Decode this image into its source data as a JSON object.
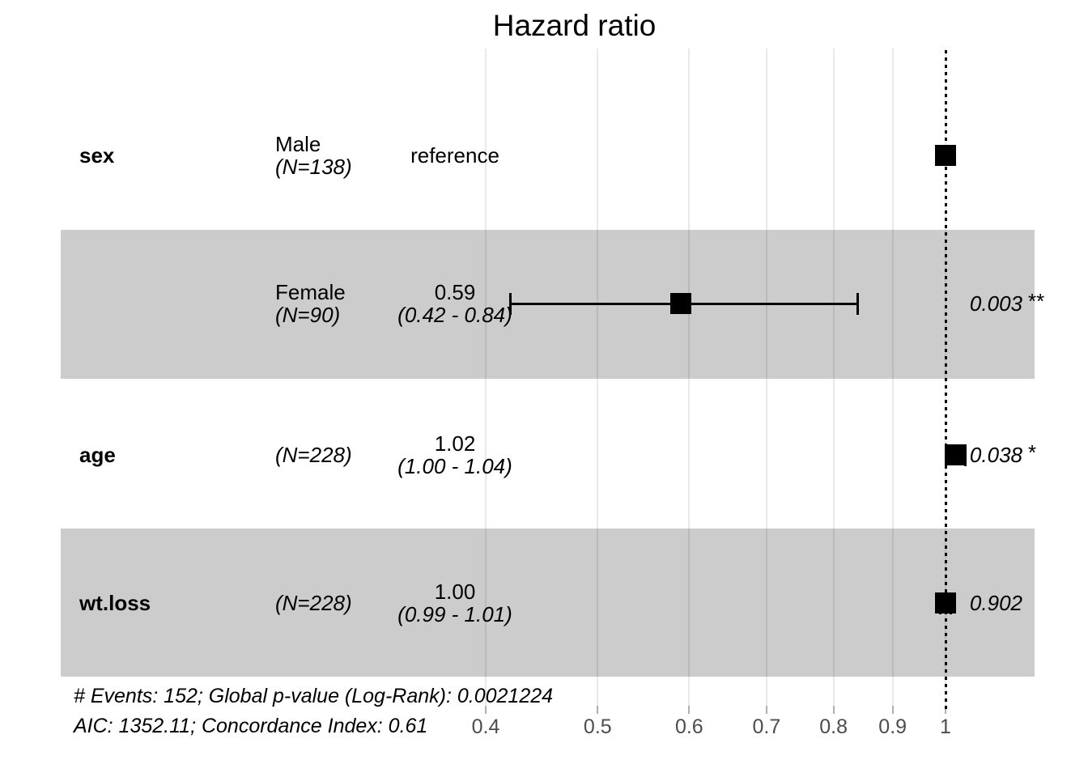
{
  "title": "Hazard ratio",
  "table": {
    "rows": [
      {
        "variable": "sex",
        "level": "Male",
        "n": "(N=138)",
        "estimate": "reference",
        "ci": "",
        "p": "",
        "stars": ""
      },
      {
        "variable": "",
        "level": "Female",
        "n": "(N=90)",
        "estimate": "0.59",
        "ci": "(0.42 - 0.84)",
        "p": "0.003",
        "stars": "**"
      },
      {
        "variable": "age",
        "level": "",
        "n": "(N=228)",
        "estimate": "1.02",
        "ci": "(1.00 - 1.04)",
        "p": "0.038",
        "stars": "*"
      },
      {
        "variable": "wt.loss",
        "level": "",
        "n": "(N=228)",
        "estimate": "1.00",
        "ci": "(0.99 - 1.01)",
        "p": "0.902",
        "stars": ""
      }
    ]
  },
  "footer": {
    "line1": "# Events: 152; Global p-value (Log-Rank): 0.0021224",
    "line2": "AIC: 1352.11; Concordance Index: 0.61"
  },
  "colors": {
    "shading": "#cccccc",
    "marker": "#000000",
    "grid": "rgba(0,0,0,0.085)",
    "tick": "#b0b0b0",
    "axis_text": "#4d4d4d"
  },
  "chart_data": {
    "type": "forest",
    "title": "Hazard ratio",
    "x_scale": "log",
    "x_ticks": [
      0.4,
      0.5,
      0.6,
      0.7,
      0.8,
      0.9,
      1
    ],
    "x_range": [
      0.4,
      1.08
    ],
    "reference_line_x": 1,
    "grid": true,
    "rows": [
      {
        "variable": "sex",
        "level": "Male",
        "n": 138,
        "estimate": 1.0,
        "ci_low": null,
        "ci_high": null,
        "estimate_label": "reference",
        "p_value": null,
        "significance": "",
        "shaded": false
      },
      {
        "variable": "sex",
        "level": "Female",
        "n": 90,
        "estimate": 0.59,
        "ci_low": 0.42,
        "ci_high": 0.84,
        "estimate_label": "0.59 (0.42 - 0.84)",
        "p_value": 0.003,
        "significance": "**",
        "shaded": true
      },
      {
        "variable": "age",
        "level": "",
        "n": 228,
        "estimate": 1.02,
        "ci_low": 1.0,
        "ci_high": 1.04,
        "estimate_label": "1.02 (1.00 - 1.04)",
        "p_value": 0.038,
        "significance": "*",
        "shaded": false
      },
      {
        "variable": "wt.loss",
        "level": "",
        "n": 228,
        "estimate": 1.0,
        "ci_low": 0.99,
        "ci_high": 1.01,
        "estimate_label": "1.00 (0.99 - 1.01)",
        "p_value": 0.902,
        "significance": "",
        "shaded": true
      }
    ],
    "stats": {
      "events": 152,
      "global_p_value_log_rank": 0.0021224,
      "aic": 1352.11,
      "concordance_index": 0.61
    }
  }
}
